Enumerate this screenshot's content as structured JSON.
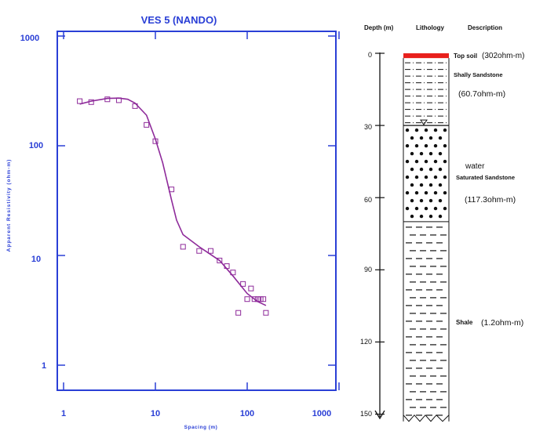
{
  "colors": {
    "frame": "#2a3fd6",
    "curve": "#8e2a9a",
    "points": "#8e2a9a",
    "topsoil": "#e8201c",
    "ink": "#111111"
  },
  "chart_data": [
    {
      "type": "scatter",
      "title": "VES 5 (NANDO)",
      "xlabel": "Spacing (m)",
      "ylabel": "Apparent Resistivity (ohm-m)",
      "xscale": "log",
      "yscale": "log",
      "xlim": [
        1,
        1000
      ],
      "ylim": [
        1,
        1000
      ],
      "x_ticks": [
        "1",
        "10",
        "100",
        "1000"
      ],
      "y_ticks": [
        "1",
        "10",
        "100",
        "1000"
      ],
      "series": [
        {
          "kind": "observed",
          "marker": "open-square",
          "x": [
            1.5,
            2,
            3,
            4,
            6,
            8,
            10,
            15,
            20,
            30,
            40,
            50,
            60,
            70,
            80,
            90,
            100,
            110,
            120,
            130,
            140,
            150,
            160
          ],
          "y": [
            255,
            250,
            265,
            260,
            230,
            155,
            110,
            40,
            12,
            11,
            11,
            9,
            8,
            7,
            3,
            5.5,
            4,
            5,
            4,
            4,
            4,
            4,
            3
          ]
        },
        {
          "kind": "model-curve",
          "x": [
            1.5,
            2,
            3,
            4,
            5,
            6,
            8,
            10,
            12,
            15,
            17,
            20,
            30,
            50,
            70,
            100,
            130,
            160
          ],
          "y": [
            240,
            255,
            270,
            272,
            265,
            245,
            190,
            115,
            70,
            32,
            21,
            15.5,
            12,
            9,
            6.5,
            4.5,
            3.8,
            3.5
          ]
        }
      ]
    },
    {
      "type": "table",
      "title": "",
      "columns": [
        "Depth (m)",
        "Lithology",
        "Description"
      ],
      "depth_ticks": [
        "0",
        "30",
        "60",
        "90",
        "120",
        "150"
      ],
      "depth_range": [
        0,
        150
      ],
      "layers": [
        {
          "pattern": "topsoil",
          "top": 0,
          "bottom": 2,
          "name": "Top soil",
          "resistivity": "(302ohm-m)"
        },
        {
          "pattern": "shaly-sandstone",
          "top": 2,
          "bottom": 30,
          "name": "Shally Sandstone",
          "resistivity": "(60.7ohm-m)"
        },
        {
          "pattern": "dots",
          "top": 30,
          "bottom": 70,
          "name_line1": "water",
          "name_line2": "Saturated Sandstone",
          "resistivity": "(117.3ohm-m)"
        },
        {
          "pattern": "dashes",
          "top": 70,
          "bottom": 153,
          "name": "Shale",
          "resistivity": "(1.2ohm-m)"
        }
      ]
    }
  ]
}
